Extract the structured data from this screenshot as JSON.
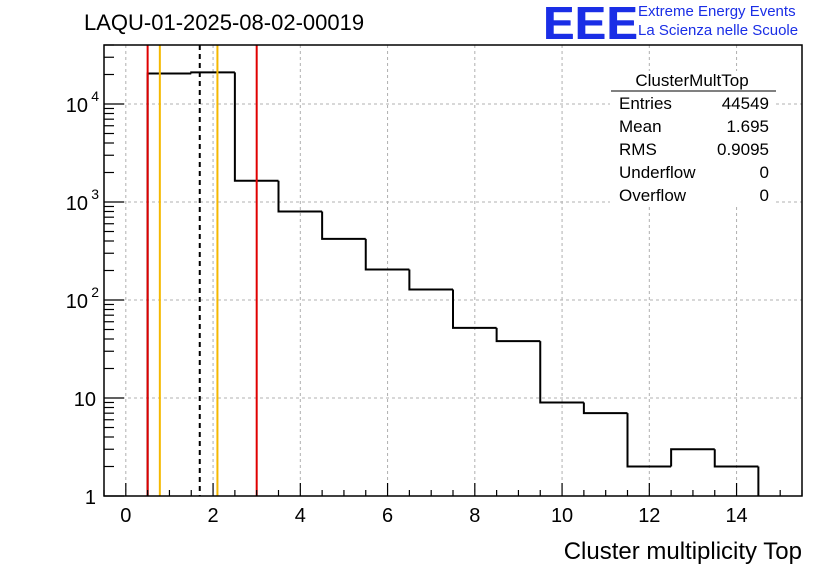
{
  "title": "LAQU-01-2025-08-02-00019",
  "logo": {
    "mark": "EEE",
    "line1": "Extreme Energy Events",
    "line2": "La Scienza nelle Scuole",
    "color": "#1a2ee6"
  },
  "stats": {
    "name": "ClusterMultTop",
    "rows": [
      {
        "label": "Entries",
        "value": "44549"
      },
      {
        "label": "Mean",
        "value": "1.695"
      },
      {
        "label": "RMS",
        "value": "0.9095"
      },
      {
        "label": "Underflow",
        "value": "0"
      },
      {
        "label": "Overflow",
        "value": "0"
      }
    ]
  },
  "chart_data": {
    "type": "histogram",
    "xlabel": "Cluster multiplicity Top",
    "ylabel": "",
    "xlim": [
      -0.5,
      15.5
    ],
    "ylim": [
      1,
      40000
    ],
    "yscale": "log",
    "grid": true,
    "bin_width": 1,
    "bin_edges_start": 0.5,
    "bins": [
      {
        "x": 1,
        "count": 20500
      },
      {
        "x": 2,
        "count": 21000
      },
      {
        "x": 3,
        "count": 1650
      },
      {
        "x": 4,
        "count": 800
      },
      {
        "x": 5,
        "count": 420
      },
      {
        "x": 6,
        "count": 205
      },
      {
        "x": 7,
        "count": 128
      },
      {
        "x": 8,
        "count": 52
      },
      {
        "x": 9,
        "count": 38
      },
      {
        "x": 10,
        "count": 9
      },
      {
        "x": 11,
        "count": 7
      },
      {
        "x": 12,
        "count": 2
      },
      {
        "x": 13,
        "count": 3
      },
      {
        "x": 14,
        "count": 2
      }
    ],
    "x_ticks": [
      "0",
      "2",
      "4",
      "6",
      "8",
      "10",
      "12",
      "14"
    ],
    "x_tick_values": [
      0,
      2,
      4,
      6,
      8,
      10,
      12,
      14
    ],
    "y_ticks": [
      {
        "value": 1,
        "base": "1",
        "exp": ""
      },
      {
        "value": 10,
        "base": "10",
        "exp": ""
      },
      {
        "value": 100,
        "base": "10",
        "exp": "2"
      },
      {
        "value": 1000,
        "base": "10",
        "exp": "3"
      },
      {
        "value": 10000,
        "base": "10",
        "exp": "4"
      }
    ],
    "vertical_lines": [
      {
        "x": 0.5,
        "color": "#e00000",
        "style": "solid"
      },
      {
        "x": 0.78,
        "color": "#f5b800",
        "style": "solid"
      },
      {
        "x": 1.695,
        "color": "#000000",
        "style": "dashed"
      },
      {
        "x": 2.1,
        "color": "#f5b800",
        "style": "solid"
      },
      {
        "x": 3.0,
        "color": "#e00000",
        "style": "solid"
      }
    ]
  }
}
